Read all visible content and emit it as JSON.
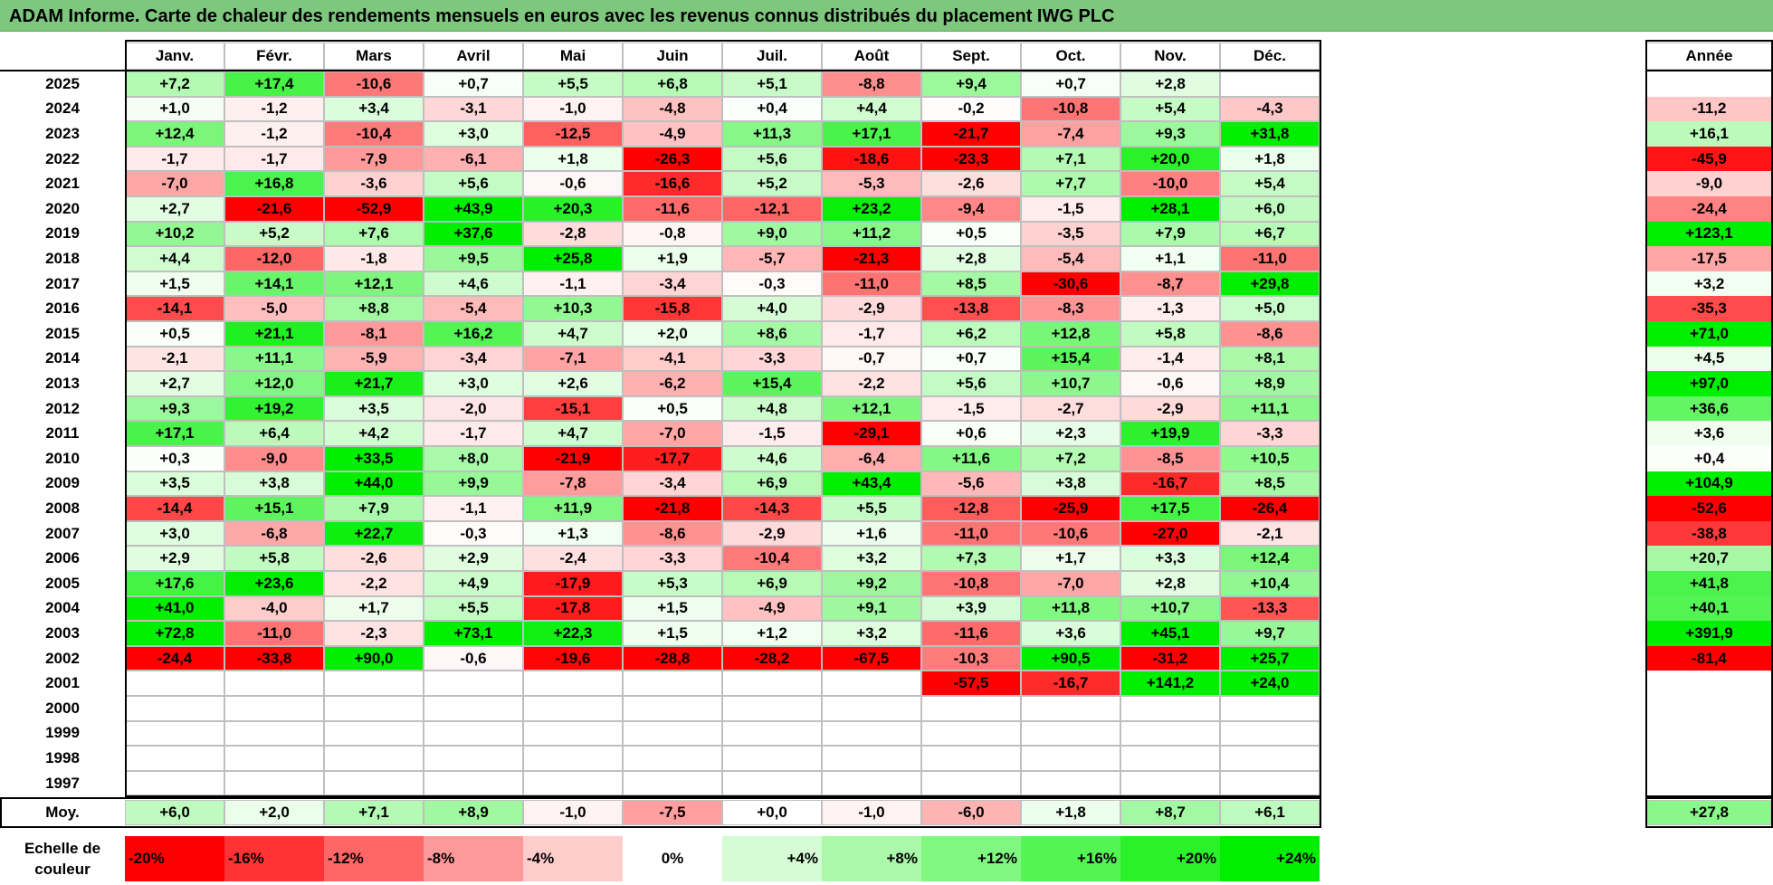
{
  "title": "ADAM Informe. Carte de chaleur des rendements mensuels en euros avec les revenus connus distribués du placement IWG PLC",
  "colors": {
    "neg_max": "#ff0000",
    "neutral": "#ffffff",
    "pos_max": "#00ee00",
    "title_bg": "#7dc87d"
  },
  "chart_data": {
    "type": "heatmap",
    "title": "ADAM Informe. Carte de chaleur des rendements mensuels en euros avec les revenus connus distribués du placement IWG PLC",
    "months": [
      "Janv.",
      "Févr.",
      "Mars",
      "Avril",
      "Mai",
      "Juin",
      "Juil.",
      "Août",
      "Sept.",
      "Oct.",
      "Nov.",
      "Déc."
    ],
    "annual_header": "Année",
    "avg_label": "Moy.",
    "rows": [
      {
        "year": "2025",
        "values": [
          "+7,2",
          "+17,4",
          "-10,6",
          "+0,7",
          "+5,5",
          "+6,8",
          "+5,1",
          "-8,8",
          "+9,4",
          "+0,7",
          "+2,8",
          ""
        ],
        "annual": ""
      },
      {
        "year": "2024",
        "values": [
          "+1,0",
          "-1,2",
          "+3,4",
          "-3,1",
          "-1,0",
          "-4,8",
          "+0,4",
          "+4,4",
          "-0,2",
          "-10,8",
          "+5,4",
          "-4,3"
        ],
        "annual": "-11,2"
      },
      {
        "year": "2023",
        "values": [
          "+12,4",
          "-1,2",
          "-10,4",
          "+3,0",
          "-12,5",
          "-4,9",
          "+11,3",
          "+17,1",
          "-21,7",
          "-7,4",
          "+9,3",
          "+31,8"
        ],
        "annual": "+16,1"
      },
      {
        "year": "2022",
        "values": [
          "-1,7",
          "-1,7",
          "-7,9",
          "-6,1",
          "+1,8",
          "-26,3",
          "+5,6",
          "-18,6",
          "-23,3",
          "+7,1",
          "+20,0",
          "+1,8"
        ],
        "annual": "-45,9"
      },
      {
        "year": "2021",
        "values": [
          "-7,0",
          "+16,8",
          "-3,6",
          "+5,6",
          "-0,6",
          "-16,6",
          "+5,2",
          "-5,3",
          "-2,6",
          "+7,7",
          "-10,0",
          "+5,4"
        ],
        "annual": "-9,0"
      },
      {
        "year": "2020",
        "values": [
          "+2,7",
          "-21,6",
          "-52,9",
          "+43,9",
          "+20,3",
          "-11,6",
          "-12,1",
          "+23,2",
          "-9,4",
          "-1,5",
          "+28,1",
          "+6,0"
        ],
        "annual": "-24,4"
      },
      {
        "year": "2019",
        "values": [
          "+10,2",
          "+5,2",
          "+7,6",
          "+37,6",
          "-2,8",
          "-0,8",
          "+9,0",
          "+11,2",
          "+0,5",
          "-3,5",
          "+7,9",
          "+6,7"
        ],
        "annual": "+123,1"
      },
      {
        "year": "2018",
        "values": [
          "+4,4",
          "-12,0",
          "-1,8",
          "+9,5",
          "+25,8",
          "+1,9",
          "-5,7",
          "-21,3",
          "+2,8",
          "-5,4",
          "+1,1",
          "-11,0"
        ],
        "annual": "-17,5"
      },
      {
        "year": "2017",
        "values": [
          "+1,5",
          "+14,1",
          "+12,1",
          "+4,6",
          "-1,1",
          "-3,4",
          "-0,3",
          "-11,0",
          "+8,5",
          "-30,6",
          "-8,7",
          "+29,8"
        ],
        "annual": "+3,2"
      },
      {
        "year": "2016",
        "values": [
          "-14,1",
          "-5,0",
          "+8,8",
          "-5,4",
          "+10,3",
          "-15,8",
          "+4,0",
          "-2,9",
          "-13,8",
          "-8,3",
          "-1,3",
          "+5,0"
        ],
        "annual": "-35,3"
      },
      {
        "year": "2015",
        "values": [
          "+0,5",
          "+21,1",
          "-8,1",
          "+16,2",
          "+4,7",
          "+2,0",
          "+8,6",
          "-1,7",
          "+6,2",
          "+12,8",
          "+5,8",
          "-8,6"
        ],
        "annual": "+71,0"
      },
      {
        "year": "2014",
        "values": [
          "-2,1",
          "+11,1",
          "-5,9",
          "-3,4",
          "-7,1",
          "-4,1",
          "-3,3",
          "-0,7",
          "+0,7",
          "+15,4",
          "-1,4",
          "+8,1"
        ],
        "annual": "+4,5"
      },
      {
        "year": "2013",
        "values": [
          "+2,7",
          "+12,0",
          "+21,7",
          "+3,0",
          "+2,6",
          "-6,2",
          "+15,4",
          "-2,2",
          "+5,6",
          "+10,7",
          "-0,6",
          "+8,9"
        ],
        "annual": "+97,0"
      },
      {
        "year": "2012",
        "values": [
          "+9,3",
          "+19,2",
          "+3,5",
          "-2,0",
          "-15,1",
          "+0,5",
          "+4,8",
          "+12,1",
          "-1,5",
          "-2,7",
          "-2,9",
          "+11,1"
        ],
        "annual": "+36,6"
      },
      {
        "year": "2011",
        "values": [
          "+17,1",
          "+6,4",
          "+4,2",
          "-1,7",
          "+4,7",
          "-7,0",
          "-1,5",
          "-29,1",
          "+0,6",
          "+2,3",
          "+19,9",
          "-3,3"
        ],
        "annual": "+3,6"
      },
      {
        "year": "2010",
        "values": [
          "+0,3",
          "-9,0",
          "+33,5",
          "+8,0",
          "-21,9",
          "-17,7",
          "+4,6",
          "-6,4",
          "+11,6",
          "+7,2",
          "-8,5",
          "+10,5"
        ],
        "annual": "+0,4"
      },
      {
        "year": "2009",
        "values": [
          "+3,5",
          "+3,8",
          "+44,0",
          "+9,9",
          "-7,8",
          "-3,4",
          "+6,9",
          "+43,4",
          "-5,6",
          "+3,8",
          "-16,7",
          "+8,5"
        ],
        "annual": "+104,9"
      },
      {
        "year": "2008",
        "values": [
          "-14,4",
          "+15,1",
          "+7,9",
          "-1,1",
          "+11,9",
          "-21,8",
          "-14,3",
          "+5,5",
          "-12,8",
          "-25,9",
          "+17,5",
          "-26,4"
        ],
        "annual": "-52,6"
      },
      {
        "year": "2007",
        "values": [
          "+3,0",
          "-6,8",
          "+22,7",
          "-0,3",
          "+1,3",
          "-8,6",
          "-2,9",
          "+1,6",
          "-11,0",
          "-10,6",
          "-27,0",
          "-2,1"
        ],
        "annual": "-38,8"
      },
      {
        "year": "2006",
        "values": [
          "+2,9",
          "+5,8",
          "-2,6",
          "+2,9",
          "-2,4",
          "-3,3",
          "-10,4",
          "+3,2",
          "+7,3",
          "+1,7",
          "+3,3",
          "+12,4"
        ],
        "annual": "+20,7"
      },
      {
        "year": "2005",
        "values": [
          "+17,6",
          "+23,6",
          "-2,2",
          "+4,9",
          "-17,9",
          "+5,3",
          "+6,9",
          "+9,2",
          "-10,8",
          "-7,0",
          "+2,8",
          "+10,4"
        ],
        "annual": "+41,8"
      },
      {
        "year": "2004",
        "values": [
          "+41,0",
          "-4,0",
          "+1,7",
          "+5,5",
          "-17,8",
          "+1,5",
          "-4,9",
          "+9,1",
          "+3,9",
          "+11,8",
          "+10,7",
          "-13,3"
        ],
        "annual": "+40,1"
      },
      {
        "year": "2003",
        "values": [
          "+72,8",
          "-11,0",
          "-2,3",
          "+73,1",
          "+22,3",
          "+1,5",
          "+1,2",
          "+3,2",
          "-11,6",
          "+3,6",
          "+45,1",
          "+9,7"
        ],
        "annual": "+391,9"
      },
      {
        "year": "2002",
        "values": [
          "-24,4",
          "-33,8",
          "+90,0",
          "-0,6",
          "-19,6",
          "-28,8",
          "-28,2",
          "-67,5",
          "-10,3",
          "+90,5",
          "-31,2",
          "+25,7"
        ],
        "annual": "-81,4"
      },
      {
        "year": "2001",
        "values": [
          "",
          "",
          "",
          "",
          "",
          "",
          "",
          "",
          "-57,5",
          "-16,7",
          "+141,2",
          "+24,0"
        ],
        "annual": ""
      },
      {
        "year": "2000",
        "values": [
          "",
          "",
          "",
          "",
          "",
          "",
          "",
          "",
          "",
          "",
          "",
          ""
        ],
        "annual": ""
      },
      {
        "year": "1999",
        "values": [
          "",
          "",
          "",
          "",
          "",
          "",
          "",
          "",
          "",
          "",
          "",
          ""
        ],
        "annual": ""
      },
      {
        "year": "1998",
        "values": [
          "",
          "",
          "",
          "",
          "",
          "",
          "",
          "",
          "",
          "",
          "",
          ""
        ],
        "annual": ""
      },
      {
        "year": "1997",
        "values": [
          "",
          "",
          "",
          "",
          "",
          "",
          "",
          "",
          "",
          "",
          "",
          ""
        ],
        "annual": ""
      }
    ],
    "average": {
      "values": [
        "+6,0",
        "+2,0",
        "+7,1",
        "+8,9",
        "-1,0",
        "-7,5",
        "+0,0",
        "-1,0",
        "-6,0",
        "+1,8",
        "+8,7",
        "+6,1"
      ],
      "annual": "+27,8"
    },
    "color_scale": {
      "label": "Echelle de couleur",
      "stops": [
        "-20%",
        "-16%",
        "-12%",
        "-8%",
        "-4%",
        "0%",
        "+4%",
        "+8%",
        "+12%",
        "+16%",
        "+20%",
        "+24%"
      ],
      "range": [
        -20,
        24
      ]
    }
  }
}
